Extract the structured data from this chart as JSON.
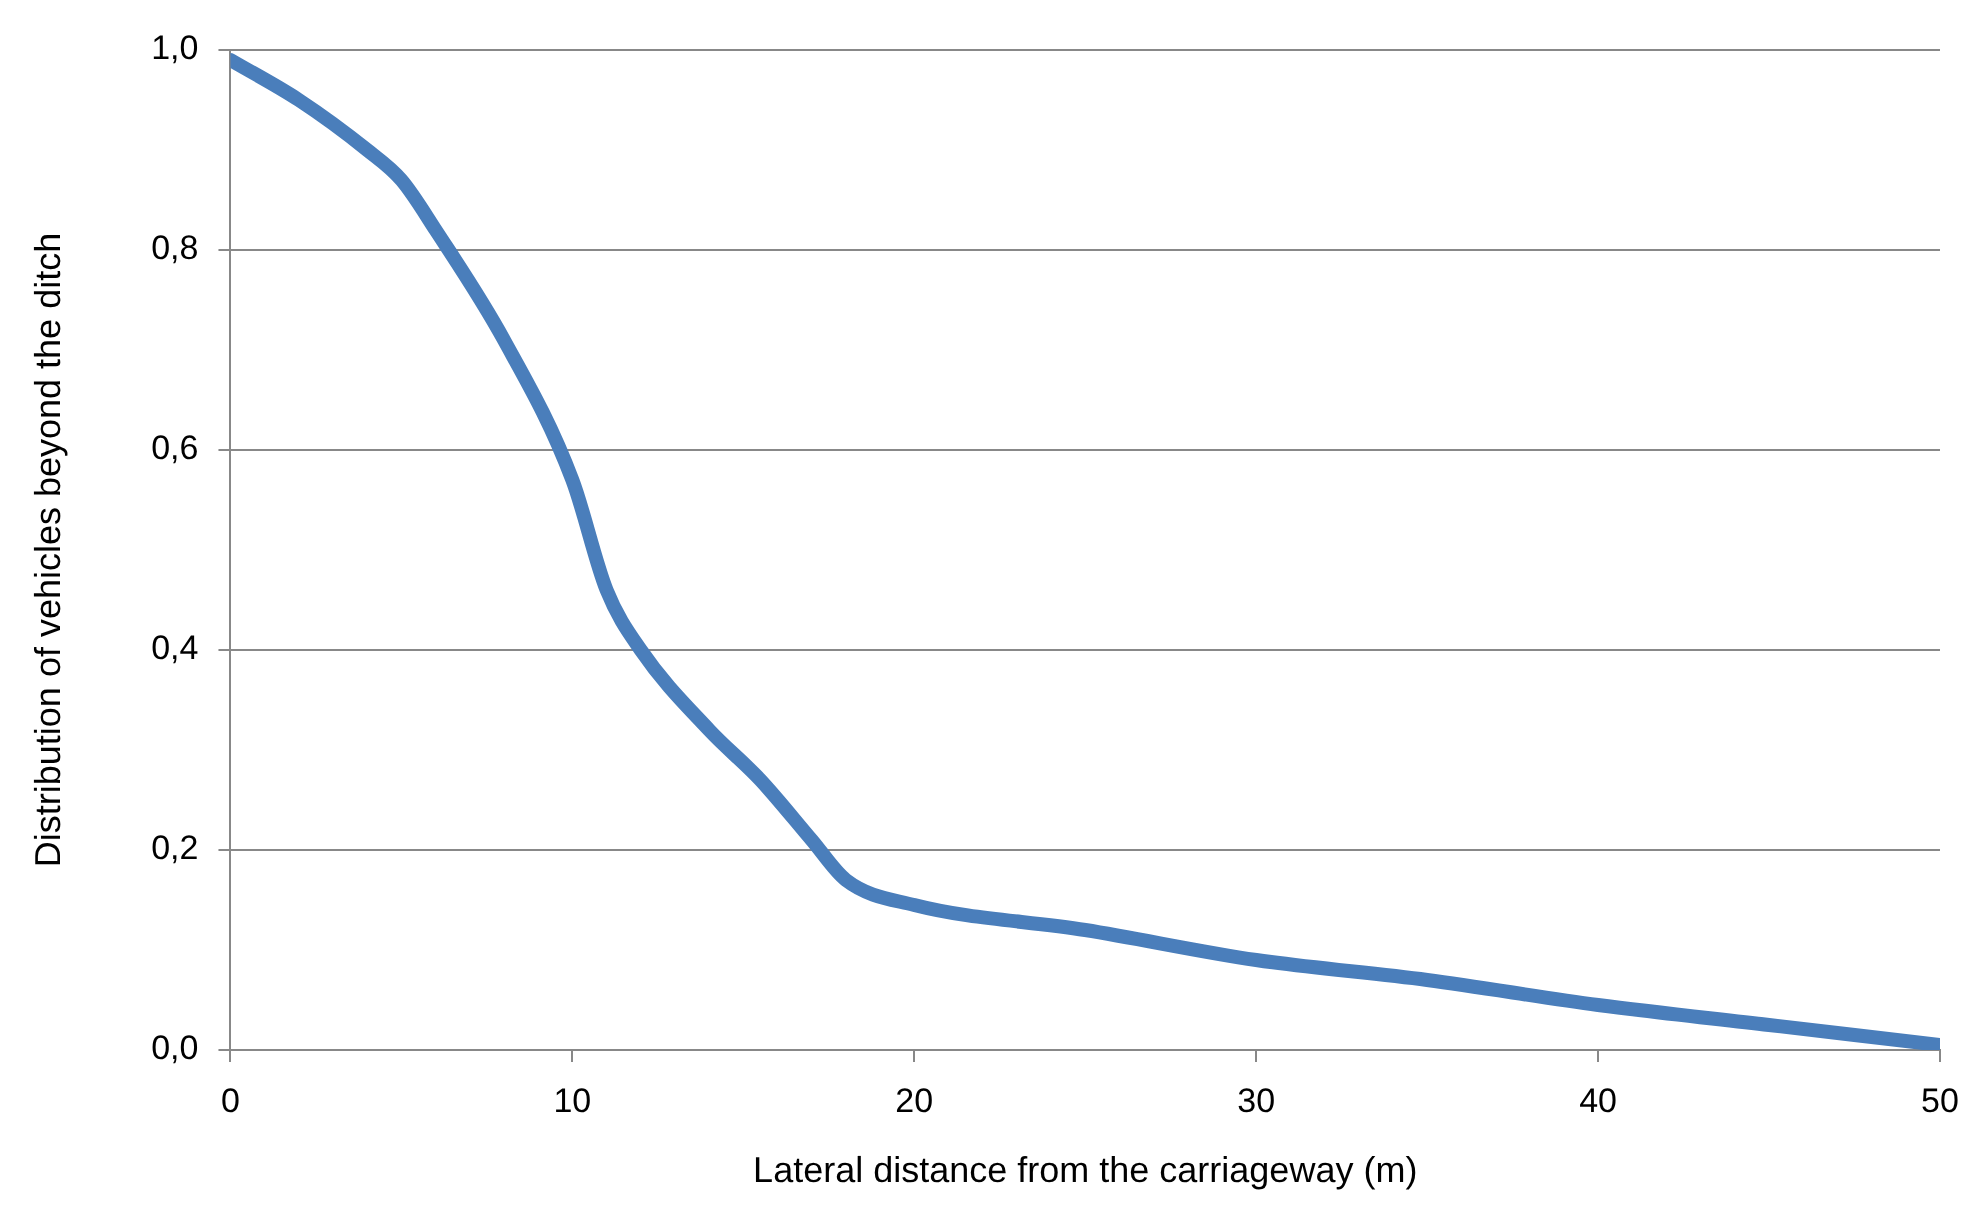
{
  "chart_data": {
    "type": "line",
    "xlabel": "Lateral distance from the carriageway (m)",
    "ylabel": "Distribution of vehicles beyond the ditch",
    "series": [
      {
        "color": "#4a7ebb",
        "x": [
          0,
          2,
          4,
          5,
          6,
          8,
          10,
          11,
          12,
          14,
          15.5,
          17,
          18,
          20,
          25,
          30,
          35,
          40,
          45,
          50
        ],
        "values": [
          0.99,
          0.95,
          0.9,
          0.87,
          0.82,
          0.71,
          0.57,
          0.46,
          0.4,
          0.32,
          0.27,
          0.21,
          0.17,
          0.145,
          0.12,
          0.09,
          0.07,
          0.045,
          0.025,
          0.005
        ]
      }
    ],
    "xlim": [
      0,
      50
    ],
    "xticks": [
      0,
      10,
      20,
      30,
      40,
      50
    ],
    "ylim": [
      0,
      1
    ],
    "yticks": [
      {
        "value": 0,
        "label": "0,0"
      },
      {
        "value": 0.2,
        "label": "0,2"
      },
      {
        "value": 0.4,
        "label": "0,4"
      },
      {
        "value": 0.6,
        "label": "0,6"
      },
      {
        "value": 0.8,
        "label": "0,8"
      },
      {
        "value": 1,
        "label": "1,0"
      }
    ],
    "grid": "y",
    "legend": false,
    "marker": "none",
    "line_style": "solid"
  }
}
